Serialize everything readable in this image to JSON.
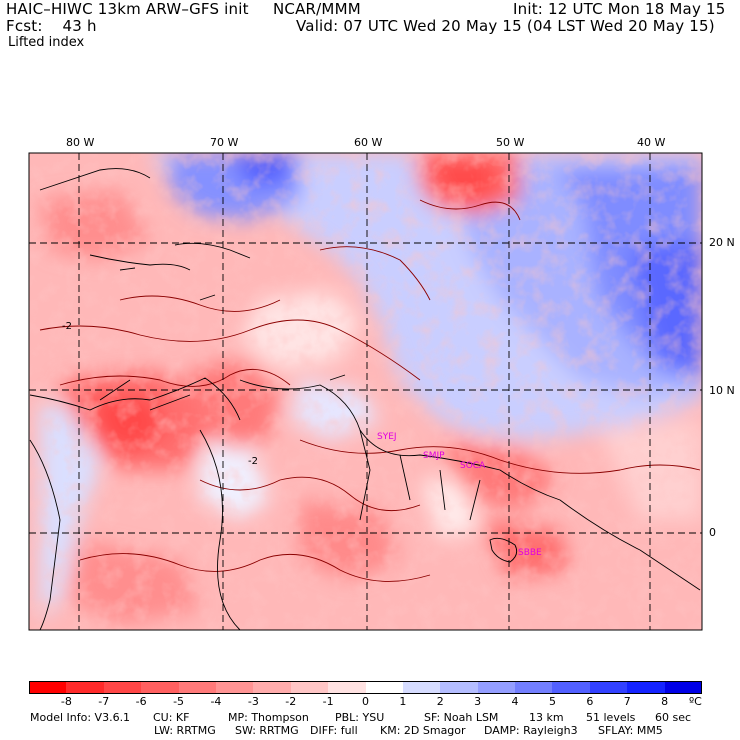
{
  "header": {
    "model": "HAIC–HIWC 13km ARW–GFS init",
    "org": "NCAR/MMM",
    "init": "Init: 12 UTC Mon 18 May 15",
    "fcst": "Fcst:    43 h",
    "valid": "Valid: 07 UTC Wed 20 May 15 (04 LST Wed 20 May 15)",
    "field": "Lifted index"
  },
  "map": {
    "lon_labels": [
      "80 W",
      "70 W",
      "60 W",
      "50 W",
      "40 W"
    ],
    "lat_labels": [
      "20 N",
      "10 N",
      "0"
    ],
    "stations": [
      "SYEJ",
      "SMJP",
      "SOCA",
      "SBBE"
    ],
    "contour_label": "-2",
    "colors": {
      "station": "#e000e0",
      "contour": "#8b0000",
      "border": "#000000"
    }
  },
  "colorbar": {
    "ticks": [
      "-8",
      "-7",
      "-6",
      "-5",
      "-4",
      "-3",
      "-2",
      "-1",
      "0",
      "1",
      "2",
      "3",
      "4",
      "5",
      "6",
      "7",
      "8"
    ],
    "unit": "ºC",
    "colors": [
      "#ff0000",
      "#ff2a2a",
      "#ff4646",
      "#ff6060",
      "#ff7a7a",
      "#ff9494",
      "#ffacac",
      "#ffc6c6",
      "#ffe2e2",
      "#ffffff",
      "#d6dcff",
      "#b4bdff",
      "#949eff",
      "#737ffe",
      "#5260ff",
      "#3241ff",
      "#1423ff",
      "#0000e6"
    ]
  },
  "footer": {
    "line1": [
      "Model Info: V3.6.1",
      "CU: KF",
      "MP: Thompson",
      "PBL: YSU",
      "SF: Noah LSM",
      "13 km",
      "51 levels",
      "60 sec"
    ],
    "line2": [
      "LW: RRTMG",
      "SW: RRTMG",
      "DIFF: full",
      "KM: 2D Smagor",
      "DAMP: Rayleigh3",
      "SFLAY: MM5"
    ]
  }
}
